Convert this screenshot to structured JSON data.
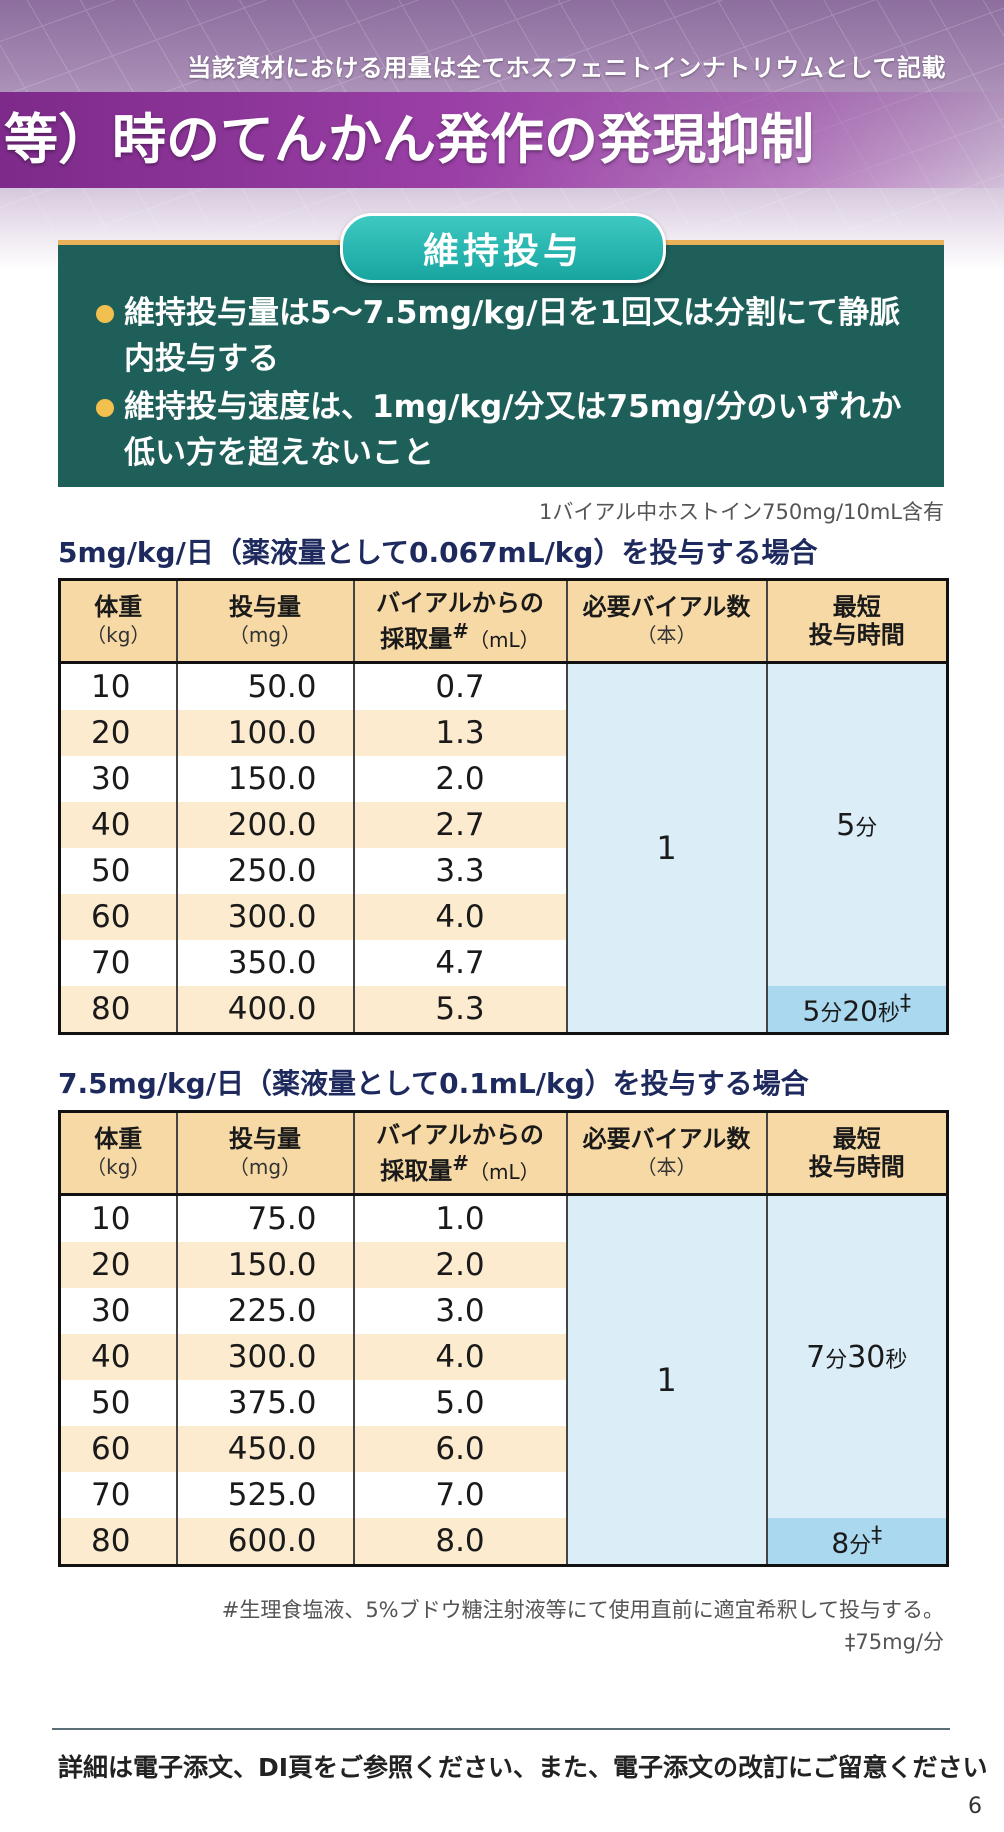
{
  "header": {
    "note": "当該資材における用量は全てホスフェニトインナトリウムとして記載",
    "title": "等）時のてんかん発作の発現抑制"
  },
  "maintenance": {
    "label": "維持投与",
    "bullets": [
      "維持投与量は5〜7.5mg/kg/日を1回又は分割にて静脈内投与する",
      "維持投与速度は、1mg/kg/分又は75mg/分のいずれか低い方を超えないこと"
    ]
  },
  "vial_note": "1バイアル中ホストイン750mg/10mL含有",
  "columns": {
    "weight": "体重",
    "weight_unit": "（kg）",
    "dose": "投与量",
    "dose_unit": "（mg）",
    "volume_line1": "バイアルからの",
    "volume_line2": "採取量",
    "volume_mark": "#",
    "volume_unit": "（mL）",
    "vials": "必要バイアル数",
    "vials_unit": "（本）",
    "time_line1": "最短",
    "time_line2": "投与時間"
  },
  "table1": {
    "heading": "5mg/kg/日（薬液量として0.067mL/kg）を投与する場合",
    "rows": [
      {
        "weight": "10",
        "dose": "50.0",
        "volume": "0.7"
      },
      {
        "weight": "20",
        "dose": "100.0",
        "volume": "1.3"
      },
      {
        "weight": "30",
        "dose": "150.0",
        "volume": "2.0"
      },
      {
        "weight": "40",
        "dose": "200.0",
        "volume": "2.7"
      },
      {
        "weight": "50",
        "dose": "250.0",
        "volume": "3.3"
      },
      {
        "weight": "60",
        "dose": "300.0",
        "volume": "4.0"
      },
      {
        "weight": "70",
        "dose": "350.0",
        "volume": "4.7"
      },
      {
        "weight": "80",
        "dose": "400.0",
        "volume": "5.3"
      }
    ],
    "vials": "1",
    "time_main": {
      "m": "5",
      "mu": "分"
    },
    "time_last": {
      "m": "5",
      "mu": "分",
      "s": "20",
      "su": "秒",
      "mark": "‡"
    }
  },
  "table2": {
    "heading": "7.5mg/kg/日（薬液量として0.1mL/kg）を投与する場合",
    "rows": [
      {
        "weight": "10",
        "dose": "75.0",
        "volume": "1.0"
      },
      {
        "weight": "20",
        "dose": "150.0",
        "volume": "2.0"
      },
      {
        "weight": "30",
        "dose": "225.0",
        "volume": "3.0"
      },
      {
        "weight": "40",
        "dose": "300.0",
        "volume": "4.0"
      },
      {
        "weight": "50",
        "dose": "375.0",
        "volume": "5.0"
      },
      {
        "weight": "60",
        "dose": "450.0",
        "volume": "6.0"
      },
      {
        "weight": "70",
        "dose": "525.0",
        "volume": "7.0"
      },
      {
        "weight": "80",
        "dose": "600.0",
        "volume": "8.0"
      }
    ],
    "vials": "1",
    "time_main": {
      "m": "7",
      "mu": "分",
      "s": "30",
      "su": "秒"
    },
    "time_last": {
      "m": "8",
      "mu": "分",
      "mark": "‡"
    }
  },
  "footnotes": [
    "#生理食塩液、5%ブドウ糖注射液等にて使用直前に適宜希釈して投与する。",
    "‡75mg/分"
  ],
  "bottom_note": "詳細は電子添文、DI頁をご参照ください、また、電子添文の改訂にご留意ください",
  "page_number": "6"
}
